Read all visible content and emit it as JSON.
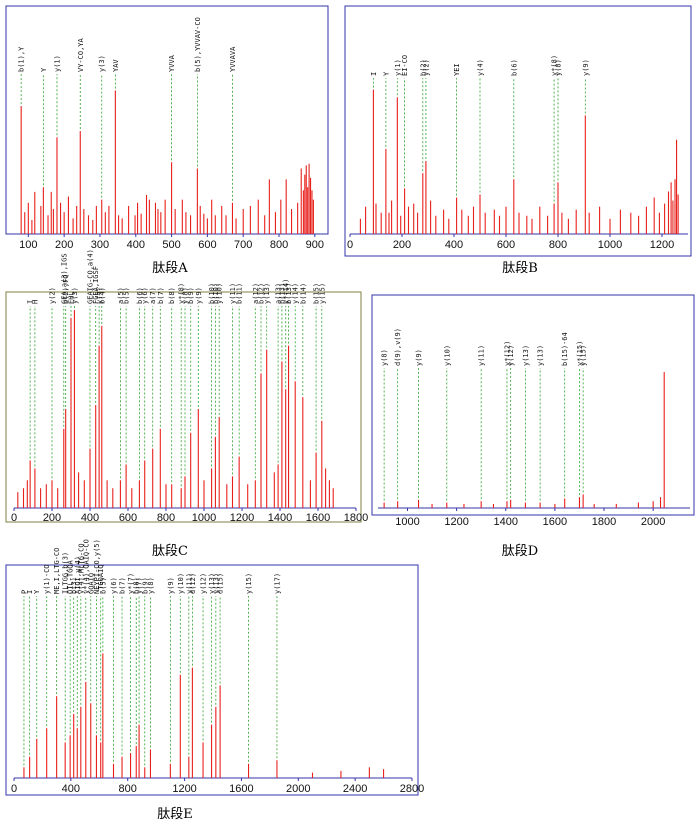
{
  "colors": {
    "frame": "#3333aa",
    "frame_c": "#808040",
    "peak": "#e8201c",
    "noise_blue": "#3a3aa8",
    "guide": "#2aa02a",
    "text": "#111111"
  },
  "chart_data": [
    {
      "id": "A",
      "type": "bar",
      "title": "肽段A",
      "xlim": [
        60,
        920
      ],
      "xticks": [
        100,
        200,
        300,
        400,
        500,
        600,
        700,
        800,
        900
      ],
      "grid": false,
      "peaks": [
        {
          "x": 80,
          "y": 82,
          "label": "b(1),Y"
        },
        {
          "x": 90,
          "y": 14
        },
        {
          "x": 100,
          "y": 20
        },
        {
          "x": 110,
          "y": 9
        },
        {
          "x": 118,
          "y": 27
        },
        {
          "x": 135,
          "y": 18
        },
        {
          "x": 142,
          "y": 30,
          "label": "Y"
        },
        {
          "x": 155,
          "y": 12
        },
        {
          "x": 164,
          "y": 27
        },
        {
          "x": 170,
          "y": 16
        },
        {
          "x": 180,
          "y": 62,
          "label": "y(1)"
        },
        {
          "x": 190,
          "y": 20
        },
        {
          "x": 200,
          "y": 14
        },
        {
          "x": 212,
          "y": 24
        },
        {
          "x": 225,
          "y": 10
        },
        {
          "x": 235,
          "y": 18
        },
        {
          "x": 245,
          "y": 66,
          "label": "VY-CO,YA"
        },
        {
          "x": 255,
          "y": 16
        },
        {
          "x": 268,
          "y": 12
        },
        {
          "x": 280,
          "y": 9
        },
        {
          "x": 290,
          "y": 18
        },
        {
          "x": 305,
          "y": 22,
          "label": "y(3)"
        },
        {
          "x": 315,
          "y": 14
        },
        {
          "x": 325,
          "y": 18
        },
        {
          "x": 343,
          "y": 92,
          "label": "YAV"
        },
        {
          "x": 352,
          "y": 12
        },
        {
          "x": 362,
          "y": 10
        },
        {
          "x": 380,
          "y": 18
        },
        {
          "x": 398,
          "y": 12
        },
        {
          "x": 405,
          "y": 20
        },
        {
          "x": 415,
          "y": 13
        },
        {
          "x": 430,
          "y": 25
        },
        {
          "x": 438,
          "y": 22
        },
        {
          "x": 455,
          "y": 20
        },
        {
          "x": 462,
          "y": 16
        },
        {
          "x": 470,
          "y": 14
        },
        {
          "x": 482,
          "y": 22
        },
        {
          "x": 500,
          "y": 46,
          "label": "YVVA"
        },
        {
          "x": 510,
          "y": 16
        },
        {
          "x": 530,
          "y": 22
        },
        {
          "x": 540,
          "y": 14
        },
        {
          "x": 553,
          "y": 12
        },
        {
          "x": 572,
          "y": 42,
          "label": "b(5),YVVAV-CO"
        },
        {
          "x": 580,
          "y": 18
        },
        {
          "x": 590,
          "y": 13
        },
        {
          "x": 600,
          "y": 10
        },
        {
          "x": 612,
          "y": 22
        },
        {
          "x": 622,
          "y": 12
        },
        {
          "x": 640,
          "y": 18
        },
        {
          "x": 652,
          "y": 12
        },
        {
          "x": 670,
          "y": 20,
          "label": "YVVAVA"
        },
        {
          "x": 680,
          "y": 10
        },
        {
          "x": 700,
          "y": 16
        },
        {
          "x": 720,
          "y": 18
        },
        {
          "x": 742,
          "y": 22
        },
        {
          "x": 760,
          "y": 12
        },
        {
          "x": 773,
          "y": 35
        },
        {
          "x": 790,
          "y": 14
        },
        {
          "x": 805,
          "y": 22
        },
        {
          "x": 820,
          "y": 35
        },
        {
          "x": 835,
          "y": 16
        },
        {
          "x": 852,
          "y": 20
        },
        {
          "x": 862,
          "y": 42
        },
        {
          "x": 868,
          "y": 28
        },
        {
          "x": 872,
          "y": 38
        },
        {
          "x": 876,
          "y": 44
        },
        {
          "x": 880,
          "y": 30
        },
        {
          "x": 884,
          "y": 45
        },
        {
          "x": 888,
          "y": 36
        },
        {
          "x": 892,
          "y": 28
        },
        {
          "x": 896,
          "y": 22
        }
      ]
    },
    {
      "id": "B",
      "type": "bar",
      "title": "肽段B",
      "xlim": [
        0,
        1300
      ],
      "xticks": [
        0,
        200,
        400,
        600,
        800,
        1000,
        1200
      ],
      "grid": false,
      "peaks": [
        {
          "x": 40,
          "y": 10
        },
        {
          "x": 60,
          "y": 18
        },
        {
          "x": 90,
          "y": 95,
          "label": "I"
        },
        {
          "x": 100,
          "y": 20
        },
        {
          "x": 120,
          "y": 14
        },
        {
          "x": 138,
          "y": 56,
          "label": "Y"
        },
        {
          "x": 150,
          "y": 14
        },
        {
          "x": 160,
          "y": 22
        },
        {
          "x": 182,
          "y": 90,
          "label": "y(1)"
        },
        {
          "x": 195,
          "y": 12
        },
        {
          "x": 210,
          "y": 30,
          "label": "EI-CO"
        },
        {
          "x": 225,
          "y": 18
        },
        {
          "x": 245,
          "y": 20
        },
        {
          "x": 260,
          "y": 14
        },
        {
          "x": 280,
          "y": 40,
          "label": "b(2)"
        },
        {
          "x": 292,
          "y": 48,
          "label": "y(2)"
        },
        {
          "x": 310,
          "y": 22
        },
        {
          "x": 330,
          "y": 12
        },
        {
          "x": 360,
          "y": 16
        },
        {
          "x": 380,
          "y": 10
        },
        {
          "x": 410,
          "y": 24,
          "label": "YEI"
        },
        {
          "x": 430,
          "y": 16
        },
        {
          "x": 455,
          "y": 12
        },
        {
          "x": 475,
          "y": 18
        },
        {
          "x": 500,
          "y": 26,
          "label": "y(4)"
        },
        {
          "x": 520,
          "y": 14
        },
        {
          "x": 555,
          "y": 16
        },
        {
          "x": 575,
          "y": 12
        },
        {
          "x": 600,
          "y": 18
        },
        {
          "x": 630,
          "y": 36,
          "label": "b(6)"
        },
        {
          "x": 650,
          "y": 14
        },
        {
          "x": 680,
          "y": 12
        },
        {
          "x": 700,
          "y": 10
        },
        {
          "x": 730,
          "y": 18
        },
        {
          "x": 760,
          "y": 12
        },
        {
          "x": 785,
          "y": 20,
          "label": "y*(8)"
        },
        {
          "x": 800,
          "y": 34,
          "label": "y(8)"
        },
        {
          "x": 815,
          "y": 14
        },
        {
          "x": 840,
          "y": 10
        },
        {
          "x": 870,
          "y": 16
        },
        {
          "x": 905,
          "y": 78,
          "label": "y(9)"
        },
        {
          "x": 920,
          "y": 14
        },
        {
          "x": 960,
          "y": 18
        },
        {
          "x": 1000,
          "y": 10
        },
        {
          "x": 1040,
          "y": 16
        },
        {
          "x": 1080,
          "y": 14
        },
        {
          "x": 1110,
          "y": 12
        },
        {
          "x": 1140,
          "y": 18
        },
        {
          "x": 1170,
          "y": 24
        },
        {
          "x": 1190,
          "y": 14
        },
        {
          "x": 1210,
          "y": 20
        },
        {
          "x": 1225,
          "y": 28
        },
        {
          "x": 1235,
          "y": 34
        },
        {
          "x": 1242,
          "y": 22
        },
        {
          "x": 1250,
          "y": 36
        },
        {
          "x": 1256,
          "y": 62
        },
        {
          "x": 1262,
          "y": 26
        }
      ]
    },
    {
      "id": "C",
      "type": "bar",
      "title": "肽段C",
      "xlim": [
        0,
        1800
      ],
      "xticks": [
        0,
        200,
        400,
        600,
        800,
        1000,
        1200,
        1400,
        1600,
        1800
      ],
      "grid": false,
      "peaks": [
        {
          "x": 20,
          "y": 8
        },
        {
          "x": 50,
          "y": 10
        },
        {
          "x": 70,
          "y": 14
        },
        {
          "x": 85,
          "y": 24,
          "label": "I"
        },
        {
          "x": 110,
          "y": 20,
          "label": "H"
        },
        {
          "x": 140,
          "y": 10
        },
        {
          "x": 170,
          "y": 12
        },
        {
          "x": 200,
          "y": 14,
          "label": "y(2)"
        },
        {
          "x": 230,
          "y": 10
        },
        {
          "x": 262,
          "y": 40,
          "label": "GEA,a(3),IGS"
        },
        {
          "x": 272,
          "y": 50,
          "label": "b(2),FQ"
        },
        {
          "x": 300,
          "y": 96,
          "label": "EHL"
        },
        {
          "x": 318,
          "y": 100,
          "label": "y(3)"
        },
        {
          "x": 340,
          "y": 18
        },
        {
          "x": 370,
          "y": 14
        },
        {
          "x": 400,
          "y": 30,
          "label": "GEAIG-CO,a(4)"
        },
        {
          "x": 430,
          "y": 52,
          "label": "FGEA,IGSF"
        },
        {
          "x": 448,
          "y": 82,
          "label": "y(4)"
        },
        {
          "x": 462,
          "y": 92,
          "label": "b(4)"
        },
        {
          "x": 490,
          "y": 14
        },
        {
          "x": 520,
          "y": 10
        },
        {
          "x": 560,
          "y": 14,
          "label": "a(5)"
        },
        {
          "x": 590,
          "y": 22,
          "label": "b(5)"
        },
        {
          "x": 620,
          "y": 10
        },
        {
          "x": 660,
          "y": 14,
          "label": "b(6)"
        },
        {
          "x": 688,
          "y": 24,
          "label": "y(6)"
        },
        {
          "x": 730,
          "y": 30,
          "label": "a(7)"
        },
        {
          "x": 770,
          "y": 40,
          "label": "b(7)"
        },
        {
          "x": 800,
          "y": 12
        },
        {
          "x": 830,
          "y": 12,
          "label": "b(8)"
        },
        {
          "x": 880,
          "y": 10,
          "label": "y*(8)"
        },
        {
          "x": 900,
          "y": 16,
          "label": "y(8)"
        },
        {
          "x": 930,
          "y": 38,
          "label": "b(9)"
        },
        {
          "x": 970,
          "y": 50,
          "label": "y(9)"
        },
        {
          "x": 1000,
          "y": 14
        },
        {
          "x": 1040,
          "y": 20,
          "label": "b(10)"
        },
        {
          "x": 1060,
          "y": 36,
          "label": "b(10)"
        },
        {
          "x": 1080,
          "y": 46,
          "label": "y(10)"
        },
        {
          "x": 1120,
          "y": 12
        },
        {
          "x": 1150,
          "y": 16,
          "label": "y(11)"
        },
        {
          "x": 1185,
          "y": 26,
          "label": "b(11)"
        },
        {
          "x": 1230,
          "y": 12
        },
        {
          "x": 1270,
          "y": 14,
          "label": "a(12)"
        },
        {
          "x": 1300,
          "y": 68,
          "label": "b(12)"
        },
        {
          "x": 1330,
          "y": 80,
          "label": "y(13)"
        },
        {
          "x": 1370,
          "y": 18
        },
        {
          "x": 1390,
          "y": 22,
          "label": "a(13)"
        },
        {
          "x": 1410,
          "y": 74,
          "label": "b(13)"
        },
        {
          "x": 1430,
          "y": 60,
          "label": "y*(14)"
        },
        {
          "x": 1445,
          "y": 82,
          "label": "b(13)"
        },
        {
          "x": 1480,
          "y": 64,
          "label": "y(14)"
        },
        {
          "x": 1520,
          "y": 56,
          "label": "b(14)"
        },
        {
          "x": 1560,
          "y": 14
        },
        {
          "x": 1590,
          "y": 28,
          "label": "b(15)"
        },
        {
          "x": 1620,
          "y": 44,
          "label": "y(15)"
        },
        {
          "x": 1640,
          "y": 20
        },
        {
          "x": 1660,
          "y": 14
        },
        {
          "x": 1680,
          "y": 10
        }
      ]
    },
    {
      "id": "D",
      "type": "bar",
      "title": "肽段D",
      "xlim": [
        880,
        2150
      ],
      "xticks": [
        1000,
        1200,
        1400,
        1600,
        1800,
        2000
      ],
      "grid": false,
      "peaks": [
        {
          "x": 905,
          "y": 4,
          "label": "y(8)"
        },
        {
          "x": 960,
          "y": 5,
          "label": "d(9),v(9)"
        },
        {
          "x": 1045,
          "y": 6,
          "label": "y(9)"
        },
        {
          "x": 1100,
          "y": 3
        },
        {
          "x": 1160,
          "y": 4,
          "label": "y(10)"
        },
        {
          "x": 1230,
          "y": 3
        },
        {
          "x": 1300,
          "y": 5,
          "label": "y(11)"
        },
        {
          "x": 1350,
          "y": 3
        },
        {
          "x": 1405,
          "y": 5,
          "label": "y*(12)"
        },
        {
          "x": 1420,
          "y": 6,
          "label": "y(12)"
        },
        {
          "x": 1480,
          "y": 4,
          "label": "y(13)"
        },
        {
          "x": 1540,
          "y": 4,
          "label": "y(13)"
        },
        {
          "x": 1600,
          "y": 3
        },
        {
          "x": 1640,
          "y": 7,
          "label": "b(15)-64"
        },
        {
          "x": 1700,
          "y": 8,
          "label": "y*(15)"
        },
        {
          "x": 1715,
          "y": 10,
          "label": "y(15)"
        },
        {
          "x": 1760,
          "y": 3
        },
        {
          "x": 1850,
          "y": 3
        },
        {
          "x": 1940,
          "y": 4
        },
        {
          "x": 2000,
          "y": 5
        },
        {
          "x": 2030,
          "y": 8
        },
        {
          "x": 2045,
          "y": 100
        }
      ]
    },
    {
      "id": "E",
      "type": "bar",
      "title": "肽段E",
      "xlim": [
        0,
        2800
      ],
      "xticks": [
        0,
        400,
        800,
        1200,
        1600,
        2000,
        2400,
        2800
      ],
      "grid": false,
      "peaks": [
        {
          "x": 70,
          "y": 6,
          "label": "P"
        },
        {
          "x": 110,
          "y": 12,
          "label": "I"
        },
        {
          "x": 160,
          "y": 22,
          "label": "Y"
        },
        {
          "x": 230,
          "y": 28,
          "label": "y(1)-CO"
        },
        {
          "x": 300,
          "y": 46,
          "label": "ME,I,LTG-CO"
        },
        {
          "x": 360,
          "y": 20,
          "label": "ILTGG,b(3)"
        },
        {
          "x": 395,
          "y": 24,
          "label": "QIL-TGQA"
        },
        {
          "x": 420,
          "y": 36,
          "label": "b(3)"
        },
        {
          "x": 445,
          "y": 28,
          "label": "AIQI,y(4)"
        },
        {
          "x": 470,
          "y": 40,
          "label": "y(4),MLTG-CO"
        },
        {
          "x": 505,
          "y": 54,
          "label": "y*(4),QAIQ-CO"
        },
        {
          "x": 540,
          "y": 42,
          "label": "GQAIQ"
        },
        {
          "x": 580,
          "y": 24,
          "label": "NEYPI-CO,y(5)"
        },
        {
          "x": 610,
          "y": 20,
          "label": "-TGQAIQ"
        },
        {
          "x": 625,
          "y": 70,
          "label": "b(5)"
        },
        {
          "x": 700,
          "y": 8,
          "label": "y(6)"
        },
        {
          "x": 760,
          "y": 12,
          "label": "b(7)"
        },
        {
          "x": 820,
          "y": 14,
          "label": "y*(7)"
        },
        {
          "x": 860,
          "y": 18,
          "label": "b(8)"
        },
        {
          "x": 880,
          "y": 30,
          "label": "y(7)"
        },
        {
          "x": 920,
          "y": 6,
          "label": "b(9)"
        },
        {
          "x": 960,
          "y": 16,
          "label": "y(8)"
        },
        {
          "x": 1100,
          "y": 8,
          "label": "y(9)"
        },
        {
          "x": 1170,
          "y": 58,
          "label": "y(10)"
        },
        {
          "x": 1230,
          "y": 12,
          "label": "y(11)"
        },
        {
          "x": 1255,
          "y": 62,
          "label": "d(12)"
        },
        {
          "x": 1330,
          "y": 20,
          "label": "y(12)"
        },
        {
          "x": 1390,
          "y": 30,
          "label": "y(13)"
        },
        {
          "x": 1420,
          "y": 40,
          "label": "y(13)"
        },
        {
          "x": 1450,
          "y": 52,
          "label": "d(15)"
        },
        {
          "x": 1650,
          "y": 8,
          "label": "y(15)"
        },
        {
          "x": 1850,
          "y": 10,
          "label": "y(17)"
        },
        {
          "x": 2100,
          "y": 3
        },
        {
          "x": 2300,
          "y": 4
        },
        {
          "x": 2500,
          "y": 6
        },
        {
          "x": 2600,
          "y": 5
        }
      ]
    }
  ]
}
